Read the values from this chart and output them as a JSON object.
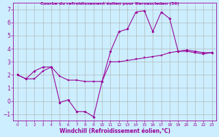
{
  "title": "Courbe du refroidissement éolien pour Kernascleden (56)",
  "xlabel": "Windchill (Refroidissement éolien,°C)",
  "background_color": "#cceeff",
  "grid_color": "#aaaaaa",
  "line_color": "#990099",
  "xlim": [
    -0.5,
    23.5
  ],
  "ylim": [
    -1.5,
    7.5
  ],
  "yticks": [
    -1,
    0,
    1,
    2,
    3,
    4,
    5,
    6,
    7
  ],
  "xticks": [
    0,
    1,
    2,
    3,
    4,
    5,
    6,
    7,
    8,
    9,
    10,
    11,
    12,
    13,
    14,
    15,
    16,
    17,
    18,
    19,
    20,
    21,
    22,
    23
  ],
  "line1_x": [
    0,
    1,
    2,
    3,
    4,
    5,
    6,
    7,
    8,
    9,
    10,
    11,
    12,
    13,
    14,
    15,
    16,
    17,
    18,
    19,
    20,
    21,
    22,
    23
  ],
  "line1_y": [
    2.0,
    1.7,
    1.7,
    2.3,
    2.6,
    1.9,
    1.6,
    1.6,
    1.5,
    1.5,
    1.5,
    3.0,
    3.0,
    3.1,
    3.2,
    3.3,
    3.4,
    3.5,
    3.7,
    3.8,
    3.8,
    3.7,
    3.6,
    3.7
  ],
  "line2_x": [
    0,
    1,
    2,
    3,
    4,
    5,
    6,
    7,
    8,
    9,
    10,
    11,
    12,
    13,
    14,
    15,
    16,
    17,
    18,
    19,
    20,
    21,
    22,
    23
  ],
  "line2_y": [
    2.0,
    1.7,
    2.3,
    2.6,
    2.6,
    -0.1,
    0.1,
    -0.8,
    -0.8,
    -1.2,
    1.5,
    3.8,
    5.3,
    5.5,
    6.8,
    6.9,
    5.3,
    6.8,
    6.3,
    3.8,
    3.9,
    3.8,
    3.7,
    3.7
  ],
  "tick_fontsize": 5.0,
  "xlabel_fontsize": 5.5,
  "title_fontsize": 4.5,
  "linewidth": 0.8,
  "markersize": 1.8
}
